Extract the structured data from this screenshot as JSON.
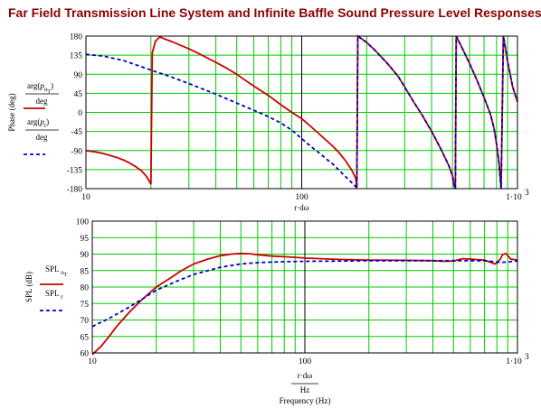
{
  "title": "Far Field Transmission Line System and Infinite Baffle Sound Pressure Level Responses",
  "colors": {
    "title": "#8b0000",
    "grid": "#00cc00",
    "decade": "#000000",
    "series_o": "#cc0000",
    "series_r": "#0000cc"
  },
  "chart_data": [
    {
      "type": "line",
      "xscale": "log",
      "xlim": [
        10,
        1000
      ],
      "ylim": [
        -180,
        180
      ],
      "ylabel": "Phase (deg)",
      "xlabel": "r·dω",
      "xticks": [
        "10",
        "100",
        "1·10"
      ],
      "xtick_exp": "3",
      "yticks": [
        "180",
        "135",
        "90",
        "45",
        "0",
        "-45",
        "-90",
        "-135",
        "-180"
      ],
      "legend": {
        "placement": "left",
        "entries": [
          {
            "pre": "arg",
            "sym": "p",
            "sub": "o",
            "subsub": "T",
            "den": "deg"
          },
          {
            "pre": "arg",
            "sym": "p",
            "sub": "r",
            "subsub": "",
            "den": "deg"
          }
        ]
      },
      "series": [
        {
          "style": "solid",
          "x": [
            10,
            11,
            12,
            13,
            14,
            15,
            16,
            17,
            18,
            19,
            19.8,
            20,
            20.3,
            21,
            22,
            23,
            25,
            27,
            30,
            33,
            36,
            40,
            45,
            50,
            55,
            60,
            70,
            80,
            90,
            100,
            110,
            120,
            130,
            140,
            150,
            160,
            170,
            178,
            180,
            182,
            200,
            220,
            250,
            280,
            300,
            330,
            360,
            400,
            440,
            480,
            500,
            510,
            515,
            520,
            550,
            600,
            650,
            700,
            750,
            780,
            800,
            820,
            830,
            840,
            860,
            880,
            900,
            950,
            1000
          ],
          "y": [
            -90,
            -93,
            -97,
            -102,
            -107,
            -113,
            -120,
            -128,
            -137,
            -150,
            -165,
            -170,
            140,
            168,
            178,
            174,
            167,
            160,
            150,
            140,
            130,
            118,
            104,
            90,
            75,
            62,
            40,
            18,
            0,
            -15,
            -33,
            -50,
            -66,
            -81,
            -97,
            -115,
            -135,
            -155,
            -178,
            180,
            165,
            145,
            115,
            85,
            60,
            25,
            -5,
            -45,
            -85,
            -125,
            -150,
            -175,
            -180,
            180,
            155,
            115,
            75,
            35,
            -5,
            -40,
            -75,
            -115,
            -150,
            -180,
            180,
            150,
            120,
            60,
            25
          ]
        },
        {
          "style": "dashed",
          "x": [
            10,
            12,
            15,
            20,
            25,
            30,
            40,
            50,
            60,
            70,
            80,
            90,
            100,
            110,
            120,
            130,
            140,
            150,
            160,
            170,
            178,
            180,
            182,
            200,
            220,
            250,
            280,
            300,
            330,
            360,
            400,
            440,
            480,
            500,
            510,
            515,
            520,
            550,
            600,
            650,
            700,
            750,
            780,
            800,
            820,
            830,
            840,
            860,
            880,
            900,
            950,
            1000
          ],
          "y": [
            137,
            133,
            122,
            100,
            83,
            68,
            43,
            22,
            5,
            -10,
            -25,
            -42,
            -62,
            -80,
            -95,
            -110,
            -123,
            -138,
            -152,
            -165,
            -175,
            -180,
            180,
            165,
            145,
            115,
            85,
            60,
            25,
            -5,
            -45,
            -85,
            -125,
            -150,
            -175,
            -180,
            180,
            155,
            115,
            75,
            35,
            -5,
            -40,
            -75,
            -115,
            -150,
            -180,
            180,
            150,
            120,
            60,
            25
          ]
        }
      ]
    },
    {
      "type": "line",
      "xscale": "log",
      "xlim": [
        10,
        1000
      ],
      "ylim": [
        60,
        100
      ],
      "ylabel": "SPL (dB)",
      "xlabel": "r·dω",
      "xlabel_den": "Hz",
      "xlabel2": "Frequency (Hz)",
      "xticks": [
        "10",
        "100",
        "1·10"
      ],
      "xtick_exp": "3",
      "yticks": [
        "100",
        "95",
        "90",
        "85",
        "80",
        "75",
        "70",
        "65",
        "60"
      ],
      "legend": {
        "placement": "left",
        "entries": [
          {
            "sym": "SPL",
            "sub": "o",
            "subsub": "T"
          },
          {
            "sym": "SPL",
            "sub": "r",
            "subsub": ""
          }
        ]
      },
      "series": [
        {
          "style": "solid",
          "x": [
            10,
            11,
            12,
            13,
            15,
            17,
            20,
            23,
            26,
            30,
            35,
            40,
            45,
            50,
            55,
            60,
            70,
            80,
            90,
            100,
            130,
            160,
            200,
            300,
            400,
            450,
            500,
            550,
            600,
            650,
            700,
            750,
            780,
            800,
            830,
            850,
            880,
            900,
            930,
            1000
          ],
          "y": [
            59.5,
            62,
            65,
            68,
            72.5,
            76,
            80,
            82.5,
            84.8,
            87,
            88.5,
            89.5,
            90,
            90.2,
            90.1,
            89.8,
            89.4,
            89.2,
            89,
            88.8,
            88.5,
            88.3,
            88.2,
            88.1,
            88.0,
            87.8,
            87.9,
            88.6,
            88.5,
            88.3,
            88.2,
            87.5,
            87,
            87.3,
            88.5,
            89.8,
            90.2,
            89.5,
            88.5,
            88.2
          ]
        },
        {
          "style": "dashed",
          "x": [
            10,
            12,
            15,
            20,
            25,
            30,
            40,
            50,
            60,
            70,
            80,
            100,
            150,
            200,
            300,
            500,
            600,
            700,
            750,
            800,
            850,
            900,
            950,
            1000
          ],
          "y": [
            68,
            70.5,
            74,
            79,
            81.8,
            83.8,
            86,
            87,
            87.4,
            87.6,
            87.7,
            87.8,
            87.9,
            88,
            88,
            88,
            88,
            88,
            87.8,
            87.6,
            87.5,
            87.6,
            87.8,
            87.9
          ]
        }
      ]
    }
  ]
}
